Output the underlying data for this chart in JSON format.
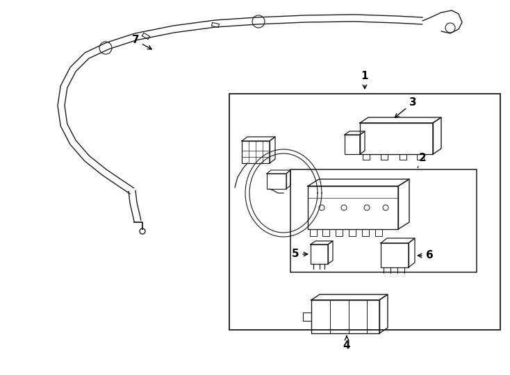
{
  "bg_color": "#ffffff",
  "lc": "#1a1a1a",
  "lw": 1.0,
  "fig_w": 7.34,
  "fig_h": 5.4,
  "dpi": 100
}
